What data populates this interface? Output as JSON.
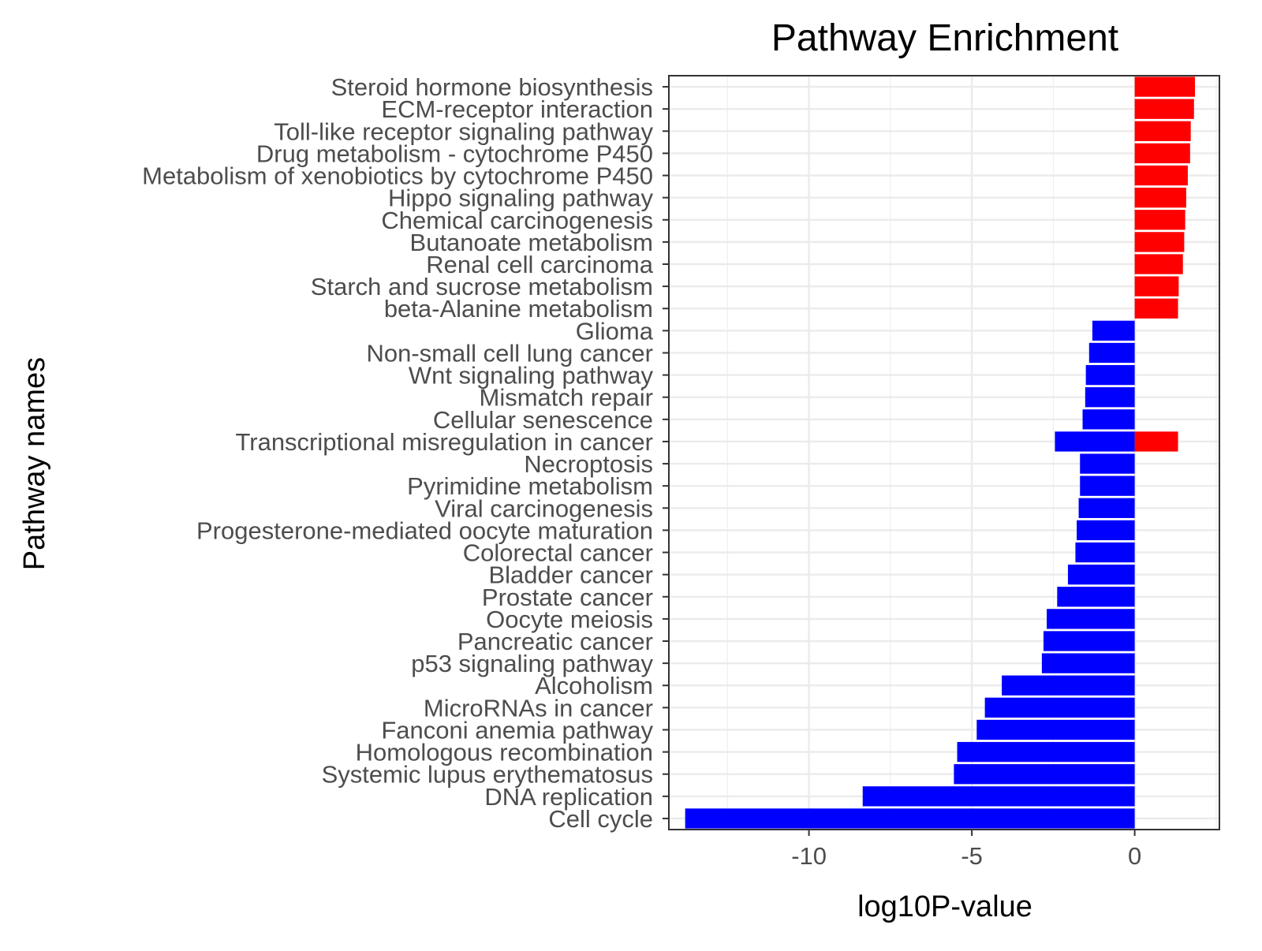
{
  "chart_data": {
    "type": "bar",
    "orientation": "horizontal",
    "title": "Pathway Enrichment",
    "xlabel": "log10P-value",
    "ylabel": "Pathway names",
    "xlim": [
      -14.3,
      2.6
    ],
    "x_ticks": [
      -10,
      -5,
      0
    ],
    "x_tick_labels": [
      "-10",
      "-5",
      "0"
    ],
    "grid": true,
    "categories": [
      "Steroid hormone biosynthesis",
      "ECM-receptor interaction",
      "Toll-like receptor signaling pathway",
      "Drug metabolism - cytochrome P450",
      "Metabolism of xenobiotics by cytochrome P450",
      "Hippo signaling pathway",
      "Chemical carcinogenesis",
      "Butanoate metabolism",
      "Renal cell carcinoma",
      "Starch and sucrose metabolism",
      "beta-Alanine metabolism",
      "Glioma",
      "Non-small cell lung cancer",
      "Wnt signaling pathway",
      "Mismatch repair",
      "Cellular senescence",
      "Transcriptional misregulation in cancer",
      "Necroptosis",
      "Pyrimidine metabolism",
      "Viral carcinogenesis",
      "Progesterone-mediated oocyte maturation",
      "Colorectal cancer",
      "Bladder cancer",
      "Prostate cancer",
      "Oocyte meiosis",
      "Pancreatic cancer",
      "p53 signaling pathway",
      "Alcoholism",
      "MicroRNAs in cancer",
      "Fanconi anemia pathway",
      "Homologous recombination",
      "Systemic lupus erythematosus",
      "DNA replication",
      "Cell cycle"
    ],
    "series": [
      {
        "color": "#ff0000",
        "values": [
          1.85,
          1.82,
          1.72,
          1.7,
          1.63,
          1.58,
          1.55,
          1.52,
          1.48,
          1.35,
          1.33,
          null,
          null,
          null,
          null,
          null,
          1.33,
          null,
          null,
          null,
          null,
          null,
          null,
          null,
          null,
          null,
          null,
          null,
          null,
          null,
          null,
          null,
          null,
          null
        ]
      },
      {
        "color": "#0000ff",
        "values": [
          null,
          null,
          null,
          null,
          null,
          null,
          null,
          null,
          null,
          null,
          null,
          -1.3,
          -1.4,
          -1.5,
          -1.52,
          -1.6,
          -2.45,
          -1.68,
          -1.68,
          -1.72,
          -1.78,
          -1.82,
          -2.05,
          -2.38,
          -2.7,
          -2.8,
          -2.85,
          -4.08,
          -4.6,
          -4.85,
          -5.45,
          -5.55,
          -8.35,
          -13.8
        ]
      }
    ]
  }
}
